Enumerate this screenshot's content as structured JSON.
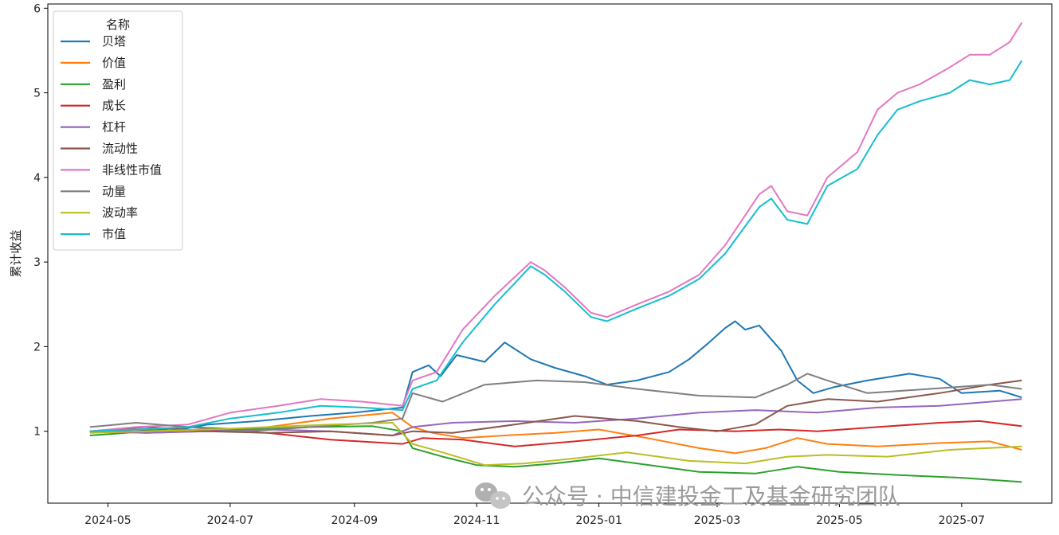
{
  "chart_data": {
    "type": "line",
    "title": "",
    "xlabel": "",
    "ylabel": "累计收益",
    "x_start": "2024-04-22",
    "x_end": "2025-07-31",
    "xlim": [
      "2024-04-01",
      "2025-08-15"
    ],
    "ylim": [
      0.15,
      6.05
    ],
    "yticks": [
      1,
      2,
      3,
      4,
      5,
      6
    ],
    "xticks": [
      "2024-05",
      "2024-07",
      "2024-09",
      "2024-11",
      "2025-01",
      "2025-03",
      "2025-05",
      "2025-07"
    ],
    "grid": false,
    "legend": {
      "title": "名称",
      "position": "top-left"
    },
    "series": [
      {
        "name": "贝塔",
        "color": "#1f77b4",
        "points": [
          [
            "2024-04-22",
            1.0
          ],
          [
            "2024-05-15",
            1.02
          ],
          [
            "2024-06-01",
            1.0
          ],
          [
            "2024-06-20",
            1.08
          ],
          [
            "2024-07-15",
            1.12
          ],
          [
            "2024-08-10",
            1.18
          ],
          [
            "2024-09-01",
            1.22
          ],
          [
            "2024-09-25",
            1.28
          ],
          [
            "2024-09-30",
            1.7
          ],
          [
            "2024-10-08",
            1.78
          ],
          [
            "2024-10-14",
            1.65
          ],
          [
            "2024-10-22",
            1.9
          ],
          [
            "2024-11-05",
            1.82
          ],
          [
            "2024-11-15",
            2.05
          ],
          [
            "2024-11-28",
            1.85
          ],
          [
            "2024-12-10",
            1.75
          ],
          [
            "2024-12-25",
            1.65
          ],
          [
            "2025-01-05",
            1.55
          ],
          [
            "2025-01-20",
            1.6
          ],
          [
            "2025-02-05",
            1.7
          ],
          [
            "2025-02-15",
            1.85
          ],
          [
            "2025-02-25",
            2.05
          ],
          [
            "2025-03-05",
            2.22
          ],
          [
            "2025-03-10",
            2.3
          ],
          [
            "2025-03-15",
            2.2
          ],
          [
            "2025-03-22",
            2.25
          ],
          [
            "2025-04-02",
            1.95
          ],
          [
            "2025-04-10",
            1.6
          ],
          [
            "2025-04-18",
            1.45
          ],
          [
            "2025-04-28",
            1.52
          ],
          [
            "2025-05-15",
            1.6
          ],
          [
            "2025-06-05",
            1.68
          ],
          [
            "2025-06-20",
            1.62
          ],
          [
            "2025-07-01",
            1.45
          ],
          [
            "2025-07-20",
            1.48
          ],
          [
            "2025-07-31",
            1.4
          ]
        ]
      },
      {
        "name": "价值",
        "color": "#ff7f0e",
        "points": [
          [
            "2024-04-22",
            1.0
          ],
          [
            "2024-05-20",
            0.98
          ],
          [
            "2024-06-20",
            1.0
          ],
          [
            "2024-07-20",
            1.05
          ],
          [
            "2024-08-20",
            1.15
          ],
          [
            "2024-09-20",
            1.22
          ],
          [
            "2024-09-30",
            1.05
          ],
          [
            "2024-10-10",
            0.98
          ],
          [
            "2024-10-25",
            0.92
          ],
          [
            "2024-11-15",
            0.95
          ],
          [
            "2024-12-10",
            0.98
          ],
          [
            "2025-01-01",
            1.02
          ],
          [
            "2025-01-25",
            0.92
          ],
          [
            "2025-02-20",
            0.8
          ],
          [
            "2025-03-10",
            0.74
          ],
          [
            "2025-03-25",
            0.8
          ],
          [
            "2025-04-10",
            0.92
          ],
          [
            "2025-04-25",
            0.85
          ],
          [
            "2025-05-20",
            0.82
          ],
          [
            "2025-06-20",
            0.86
          ],
          [
            "2025-07-15",
            0.88
          ],
          [
            "2025-07-31",
            0.78
          ]
        ]
      },
      {
        "name": "盈利",
        "color": "#2ca02c",
        "points": [
          [
            "2024-04-22",
            0.95
          ],
          [
            "2024-05-10",
            0.98
          ],
          [
            "2024-06-10",
            1.05
          ],
          [
            "2024-07-10",
            1.02
          ],
          [
            "2024-08-10",
            1.05
          ],
          [
            "2024-09-10",
            1.06
          ],
          [
            "2024-09-25",
            1.0
          ],
          [
            "2024-09-30",
            0.8
          ],
          [
            "2024-10-15",
            0.7
          ],
          [
            "2024-11-01",
            0.6
          ],
          [
            "2024-11-20",
            0.58
          ],
          [
            "2024-12-10",
            0.62
          ],
          [
            "2025-01-01",
            0.68
          ],
          [
            "2025-01-20",
            0.62
          ],
          [
            "2025-02-20",
            0.52
          ],
          [
            "2025-03-20",
            0.5
          ],
          [
            "2025-04-10",
            0.58
          ],
          [
            "2025-05-01",
            0.52
          ],
          [
            "2025-06-01",
            0.48
          ],
          [
            "2025-07-01",
            0.45
          ],
          [
            "2025-07-31",
            0.4
          ]
        ]
      },
      {
        "name": "成长",
        "color": "#d62728",
        "points": [
          [
            "2024-04-22",
            1.0
          ],
          [
            "2024-05-20",
            1.0
          ],
          [
            "2024-06-20",
            1.02
          ],
          [
            "2024-07-20",
            0.98
          ],
          [
            "2024-08-20",
            0.9
          ],
          [
            "2024-09-25",
            0.85
          ],
          [
            "2024-10-05",
            0.92
          ],
          [
            "2024-10-25",
            0.9
          ],
          [
            "2024-11-20",
            0.82
          ],
          [
            "2024-12-20",
            0.88
          ],
          [
            "2025-01-20",
            0.95
          ],
          [
            "2025-02-10",
            1.02
          ],
          [
            "2025-03-10",
            1.0
          ],
          [
            "2025-04-01",
            1.02
          ],
          [
            "2025-04-20",
            1.0
          ],
          [
            "2025-05-20",
            1.05
          ],
          [
            "2025-06-20",
            1.1
          ],
          [
            "2025-07-10",
            1.12
          ],
          [
            "2025-07-31",
            1.06
          ]
        ]
      },
      {
        "name": "杠杆",
        "color": "#9467bd",
        "points": [
          [
            "2024-04-22",
            1.0
          ],
          [
            "2024-05-20",
            0.98
          ],
          [
            "2024-06-20",
            1.0
          ],
          [
            "2024-07-20",
            1.02
          ],
          [
            "2024-08-20",
            1.0
          ],
          [
            "2024-09-20",
            0.95
          ],
          [
            "2024-09-30",
            1.05
          ],
          [
            "2024-10-20",
            1.1
          ],
          [
            "2024-11-20",
            1.12
          ],
          [
            "2024-12-20",
            1.1
          ],
          [
            "2025-01-20",
            1.15
          ],
          [
            "2025-02-20",
            1.22
          ],
          [
            "2025-03-20",
            1.25
          ],
          [
            "2025-04-20",
            1.22
          ],
          [
            "2025-05-20",
            1.28
          ],
          [
            "2025-06-20",
            1.3
          ],
          [
            "2025-07-31",
            1.38
          ]
        ]
      },
      {
        "name": "流动性",
        "color": "#8c564b",
        "points": [
          [
            "2024-04-22",
            1.0
          ],
          [
            "2024-05-20",
            1.05
          ],
          [
            "2024-06-20",
            1.0
          ],
          [
            "2024-07-20",
            0.98
          ],
          [
            "2024-08-20",
            1.0
          ],
          [
            "2024-09-20",
            0.95
          ],
          [
            "2024-09-30",
            1.0
          ],
          [
            "2024-10-20",
            0.98
          ],
          [
            "2024-11-20",
            1.08
          ],
          [
            "2024-12-20",
            1.18
          ],
          [
            "2025-01-20",
            1.12
          ],
          [
            "2025-02-10",
            1.05
          ],
          [
            "2025-03-01",
            1.0
          ],
          [
            "2025-03-20",
            1.08
          ],
          [
            "2025-04-05",
            1.3
          ],
          [
            "2025-04-25",
            1.38
          ],
          [
            "2025-05-20",
            1.35
          ],
          [
            "2025-06-20",
            1.45
          ],
          [
            "2025-07-15",
            1.55
          ],
          [
            "2025-07-31",
            1.6
          ]
        ]
      },
      {
        "name": "非线性市值",
        "color": "#e377c2",
        "points": [
          [
            "2024-04-22",
            1.0
          ],
          [
            "2024-05-15",
            1.05
          ],
          [
            "2024-06-10",
            1.08
          ],
          [
            "2024-07-01",
            1.22
          ],
          [
            "2024-07-25",
            1.3
          ],
          [
            "2024-08-15",
            1.38
          ],
          [
            "2024-09-05",
            1.35
          ],
          [
            "2024-09-25",
            1.3
          ],
          [
            "2024-09-30",
            1.6
          ],
          [
            "2024-10-12",
            1.7
          ],
          [
            "2024-10-25",
            2.2
          ],
          [
            "2024-11-10",
            2.6
          ],
          [
            "2024-11-28",
            3.0
          ],
          [
            "2024-12-05",
            2.9
          ],
          [
            "2024-12-15",
            2.7
          ],
          [
            "2024-12-28",
            2.4
          ],
          [
            "2025-01-05",
            2.35
          ],
          [
            "2025-01-20",
            2.5
          ],
          [
            "2025-02-05",
            2.65
          ],
          [
            "2025-02-20",
            2.85
          ],
          [
            "2025-03-05",
            3.2
          ],
          [
            "2025-03-22",
            3.8
          ],
          [
            "2025-03-28",
            3.9
          ],
          [
            "2025-04-05",
            3.6
          ],
          [
            "2025-04-15",
            3.55
          ],
          [
            "2025-04-25",
            4.0
          ],
          [
            "2025-05-10",
            4.3
          ],
          [
            "2025-05-20",
            4.8
          ],
          [
            "2025-05-30",
            5.0
          ],
          [
            "2025-06-10",
            5.1
          ],
          [
            "2025-06-25",
            5.3
          ],
          [
            "2025-07-05",
            5.45
          ],
          [
            "2025-07-15",
            5.45
          ],
          [
            "2025-07-25",
            5.6
          ],
          [
            "2025-07-31",
            5.83
          ]
        ]
      },
      {
        "name": "动量",
        "color": "#7f7f7f",
        "points": [
          [
            "2024-04-22",
            1.05
          ],
          [
            "2024-05-15",
            1.1
          ],
          [
            "2024-06-10",
            1.05
          ],
          [
            "2024-07-10",
            1.0
          ],
          [
            "2024-08-10",
            1.05
          ],
          [
            "2024-09-10",
            1.1
          ],
          [
            "2024-09-25",
            1.15
          ],
          [
            "2024-09-30",
            1.45
          ],
          [
            "2024-10-15",
            1.35
          ],
          [
            "2024-11-05",
            1.55
          ],
          [
            "2024-12-01",
            1.6
          ],
          [
            "2024-12-25",
            1.58
          ],
          [
            "2025-01-20",
            1.5
          ],
          [
            "2025-02-20",
            1.42
          ],
          [
            "2025-03-20",
            1.4
          ],
          [
            "2025-04-05",
            1.55
          ],
          [
            "2025-04-15",
            1.68
          ],
          [
            "2025-04-25",
            1.6
          ],
          [
            "2025-05-15",
            1.45
          ],
          [
            "2025-06-15",
            1.5
          ],
          [
            "2025-07-15",
            1.55
          ],
          [
            "2025-07-31",
            1.5
          ]
        ]
      },
      {
        "name": "波动率",
        "color": "#bcbd22",
        "points": [
          [
            "2024-04-22",
            0.98
          ],
          [
            "2024-05-20",
            1.0
          ],
          [
            "2024-06-20",
            1.02
          ],
          [
            "2024-07-20",
            1.05
          ],
          [
            "2024-08-20",
            1.08
          ],
          [
            "2024-09-20",
            1.1
          ],
          [
            "2024-09-30",
            0.85
          ],
          [
            "2024-10-15",
            0.75
          ],
          [
            "2024-11-05",
            0.6
          ],
          [
            "2024-11-25",
            0.62
          ],
          [
            "2024-12-20",
            0.68
          ],
          [
            "2025-01-15",
            0.75
          ],
          [
            "2025-02-15",
            0.65
          ],
          [
            "2025-03-15",
            0.62
          ],
          [
            "2025-04-05",
            0.7
          ],
          [
            "2025-04-25",
            0.72
          ],
          [
            "2025-05-25",
            0.7
          ],
          [
            "2025-06-25",
            0.78
          ],
          [
            "2025-07-31",
            0.82
          ]
        ]
      },
      {
        "name": "市值",
        "color": "#17becf",
        "points": [
          [
            "2024-04-22",
            1.0
          ],
          [
            "2024-05-15",
            1.02
          ],
          [
            "2024-06-10",
            1.05
          ],
          [
            "2024-07-01",
            1.15
          ],
          [
            "2024-07-25",
            1.22
          ],
          [
            "2024-08-15",
            1.3
          ],
          [
            "2024-09-05",
            1.28
          ],
          [
            "2024-09-25",
            1.25
          ],
          [
            "2024-09-30",
            1.5
          ],
          [
            "2024-10-12",
            1.6
          ],
          [
            "2024-10-25",
            2.05
          ],
          [
            "2024-11-10",
            2.5
          ],
          [
            "2024-11-28",
            2.95
          ],
          [
            "2024-12-05",
            2.85
          ],
          [
            "2024-12-15",
            2.65
          ],
          [
            "2024-12-28",
            2.35
          ],
          [
            "2025-01-05",
            2.3
          ],
          [
            "2025-01-20",
            2.45
          ],
          [
            "2025-02-05",
            2.6
          ],
          [
            "2025-02-20",
            2.8
          ],
          [
            "2025-03-05",
            3.1
          ],
          [
            "2025-03-22",
            3.65
          ],
          [
            "2025-03-28",
            3.75
          ],
          [
            "2025-04-05",
            3.5
          ],
          [
            "2025-04-15",
            3.45
          ],
          [
            "2025-04-25",
            3.9
          ],
          [
            "2025-05-10",
            4.1
          ],
          [
            "2025-05-20",
            4.5
          ],
          [
            "2025-05-30",
            4.8
          ],
          [
            "2025-06-10",
            4.9
          ],
          [
            "2025-06-25",
            5.0
          ],
          [
            "2025-07-05",
            5.15
          ],
          [
            "2025-07-15",
            5.1
          ],
          [
            "2025-07-25",
            5.15
          ],
          [
            "2025-07-31",
            5.38
          ]
        ]
      }
    ]
  },
  "watermark": {
    "icon": "wechat-icon",
    "text": "公众号 · 中信建投金工及基金研究团队"
  }
}
